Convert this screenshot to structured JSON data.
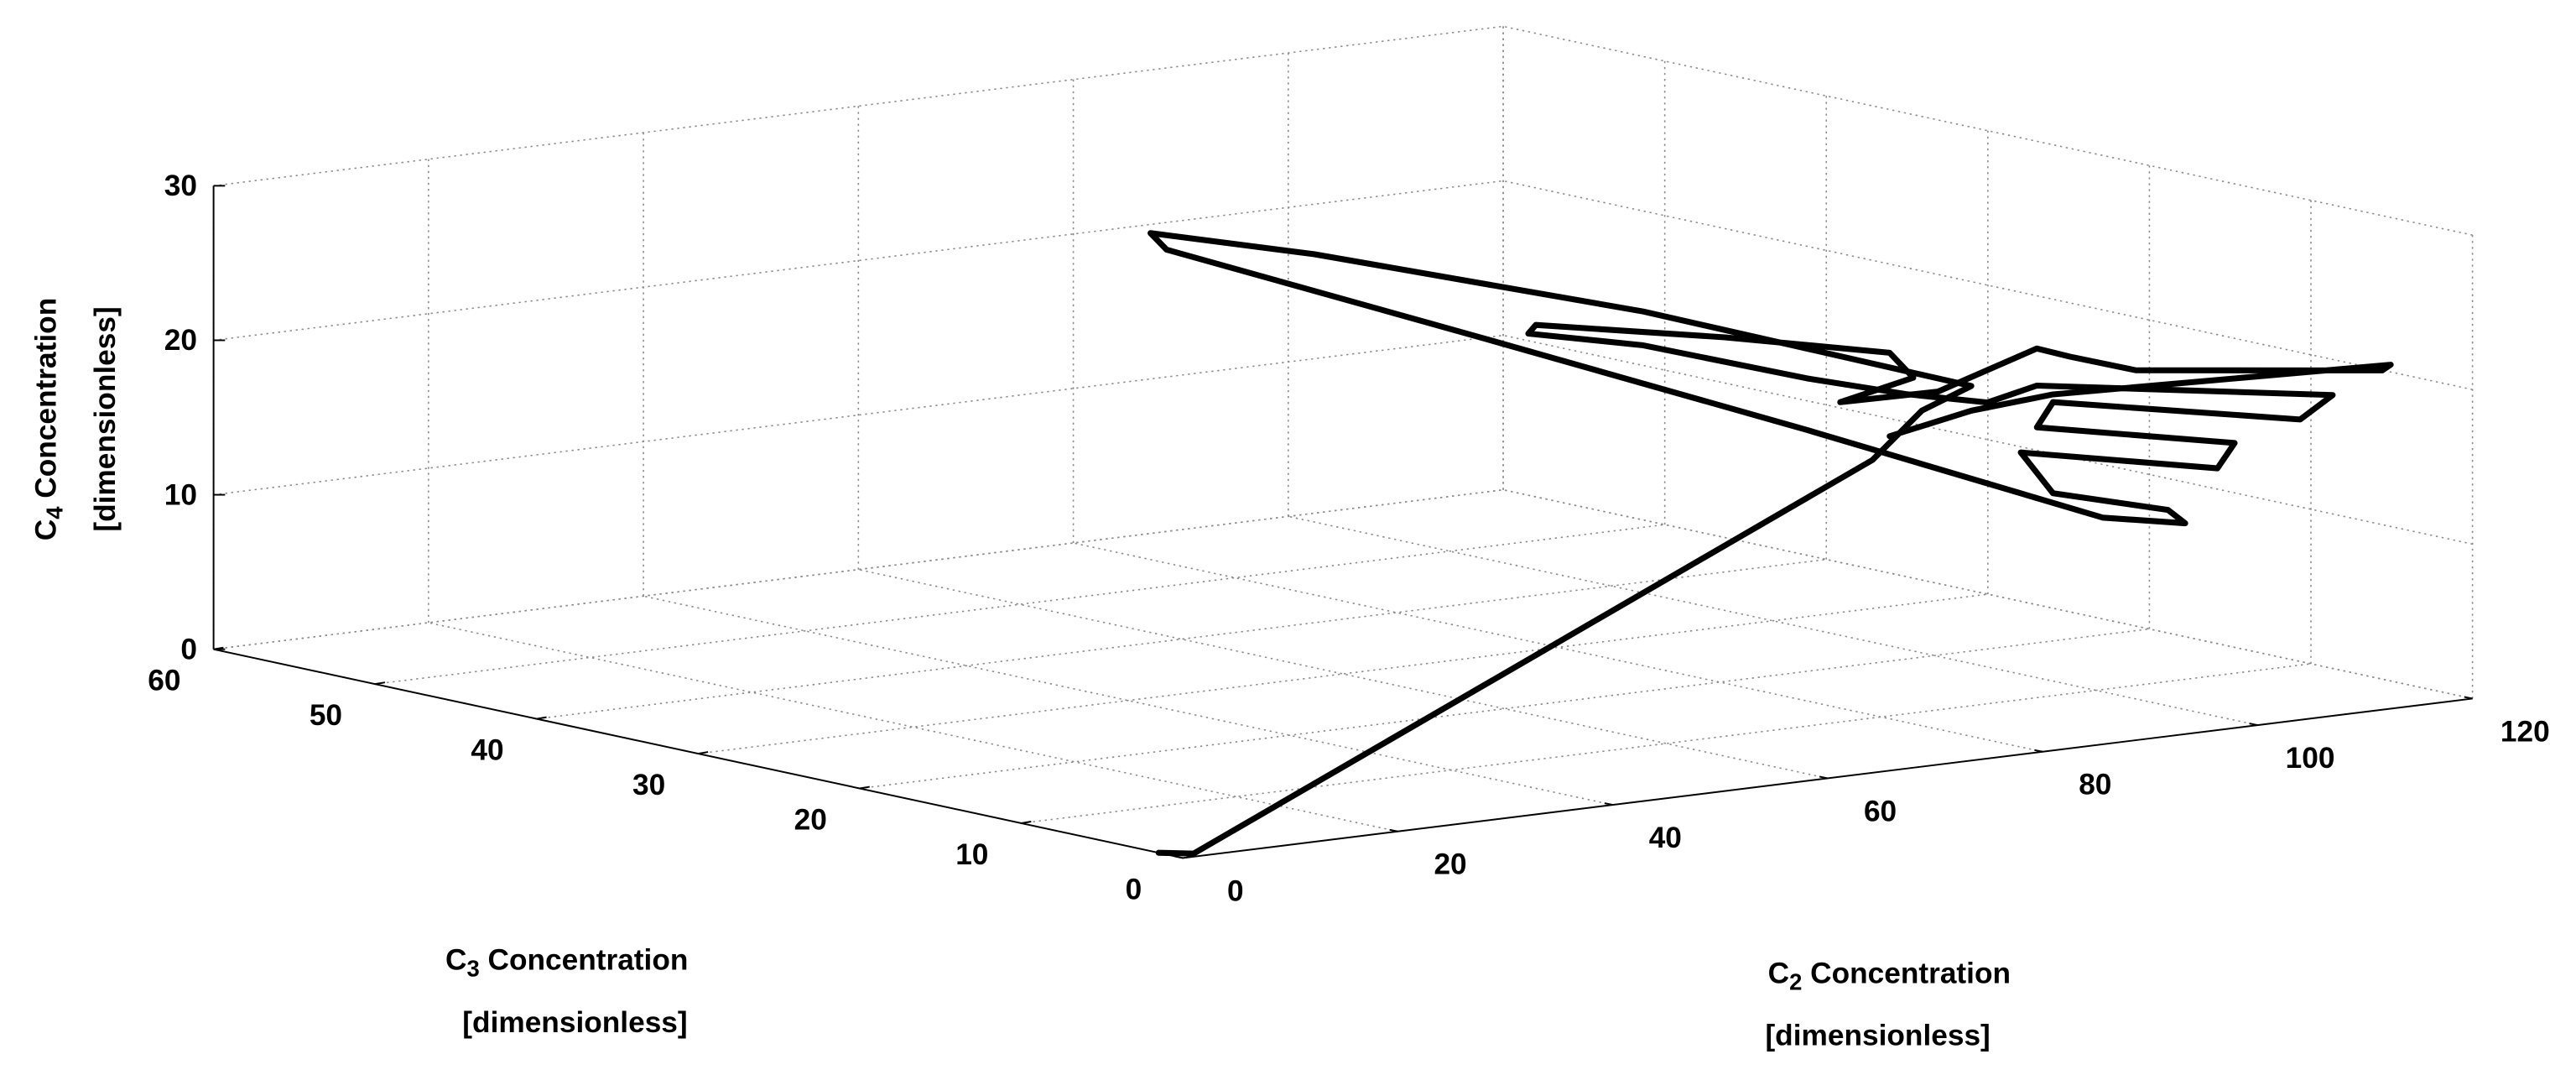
{
  "chart_data": {
    "type": "line3d",
    "xlabel": {
      "symbol": "C",
      "subscript": "2",
      "text": " Concentration",
      "unit": "[dimensionless]"
    },
    "ylabel": {
      "symbol": "C",
      "subscript": "3",
      "text": " Concentration",
      "unit": "[dimensionless]"
    },
    "zlabel": {
      "symbol": "C",
      "subscript": "4",
      "text": " Concentration",
      "unit": "[dimensionless]"
    },
    "xlim": [
      0,
      120
    ],
    "xticks": [
      0,
      20,
      40,
      60,
      80,
      100,
      120
    ],
    "ylim": [
      0,
      60
    ],
    "yticks": [
      0,
      10,
      20,
      30,
      40,
      50,
      60
    ],
    "zlim": [
      0,
      30
    ],
    "zticks": [
      0,
      10,
      20,
      30
    ],
    "grid": true,
    "series": [
      {
        "color": "#000000",
        "x": [
          0,
          1,
          79.2,
          83.8,
          88.4,
          72.9,
          57.3,
          49.6,
          51.1,
          65.1,
          80.6,
          93.1,
          108.3,
          106.7,
          96.0,
          93.0,
          111.3,
          112.9,
          94.5,
          96.0,
          119.0,
          111.5,
          94.5,
          89.9,
          82.3,
          76.1,
          65.3,
          59.2,
          59.9,
          71.5,
          80.8,
          83.0,
          76.2,
          85.3,
          94.5,
          97.6,
          103.7,
          116.1,
          116.9,
          96.0,
          88.4,
          80.8
        ],
        "y": [
          1.5,
          0,
          10,
          10,
          10,
          20,
          30,
          35,
          35,
          25,
          15,
          5,
          10,
          10,
          10,
          10,
          10,
          10,
          10,
          10,
          10,
          3,
          10,
          10,
          10,
          12,
          15,
          18,
          18,
          14,
          10,
          10,
          10,
          10,
          10,
          10,
          10,
          3,
          3,
          10,
          10,
          10
        ],
        "z": [
          0,
          0.2,
          16.7,
          19.5,
          20.7,
          24.6,
          27.4,
          28.3,
          27.1,
          22.5,
          17.4,
          12.9,
          10.1,
          11.1,
          13.1,
          16.0,
          13.4,
          14.9,
          17.5,
          19.0,
          15.9,
          19.7,
          20.2,
          19.5,
          20.7,
          21.8,
          24.2,
          24.8,
          25.3,
          24.4,
          23.5,
          21.7,
          20.7,
          20.6,
          22.6,
          21.8,
          20.4,
          20.9,
          21.2,
          19.5,
          19.1,
          18.1
        ]
      }
    ]
  }
}
